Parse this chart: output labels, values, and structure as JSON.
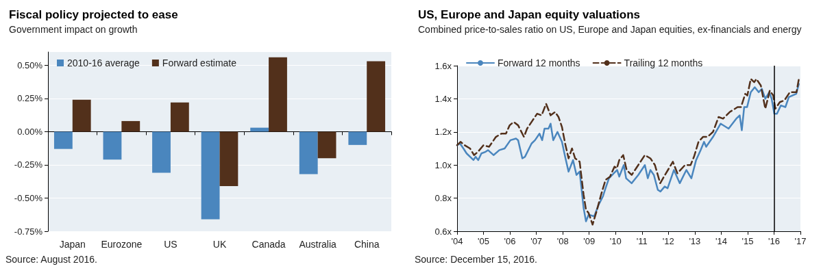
{
  "chart_data": [
    {
      "type": "bar",
      "title": "Fiscal policy projected to ease",
      "subtitle": "Government impact on growth",
      "categories": [
        "Japan",
        "Eurozone",
        "US",
        "UK",
        "Canada",
        "Australia",
        "China"
      ],
      "series": [
        {
          "name": "2010-16 average",
          "color": "#4a86be",
          "values": [
            -0.13,
            -0.21,
            -0.31,
            -0.66,
            0.03,
            -0.32,
            -0.1
          ]
        },
        {
          "name": "Forward estimate",
          "color": "#52301b",
          "values": [
            0.24,
            0.08,
            0.22,
            -0.41,
            0.56,
            -0.2,
            0.53
          ]
        }
      ],
      "ylim": [
        -0.75,
        0.6
      ],
      "yticks": [
        {
          "value": -0.75,
          "label": "-0.75%"
        },
        {
          "value": -0.5,
          "label": "-0.50%"
        },
        {
          "value": -0.25,
          "label": "-0.25%"
        },
        {
          "value": 0,
          "label": "0.00%"
        },
        {
          "value": 0.25,
          "label": "0.25%"
        },
        {
          "value": 0.5,
          "label": "0.50%"
        }
      ],
      "grid": "y",
      "legend": "top left",
      "annotations": [
        "Source: August 2016."
      ]
    },
    {
      "type": "line",
      "title": "US, Europe and Japan equity valuations",
      "subtitle": "Combined price-to-sales ratio on US, Europe and Japan equities, ex-financials and energy",
      "series": [
        {
          "name": "Forward 12 months",
          "color": "#4a86be",
          "x": [
            2004.0,
            2004.11,
            2004.24,
            2004.36,
            2004.62,
            2004.7,
            2004.8,
            2004.92,
            2005.08,
            2005.17,
            2005.38,
            2005.6,
            2005.8,
            2006.02,
            2006.23,
            2006.31,
            2006.47,
            2006.57,
            2006.82,
            2006.95,
            2007.12,
            2007.22,
            2007.31,
            2007.46,
            2007.54,
            2007.64,
            2007.8,
            2007.97,
            2008.09,
            2008.22,
            2008.39,
            2008.52,
            2008.64,
            2008.79,
            2008.88,
            2008.98,
            2009.19,
            2009.36,
            2009.52,
            2009.62,
            2009.75,
            2009.93,
            2010.06,
            2010.14,
            2010.31,
            2010.4,
            2010.61,
            2010.86,
            2011.11,
            2011.22,
            2011.32,
            2011.45,
            2011.6,
            2011.7,
            2011.86,
            2011.97,
            2012.21,
            2012.43,
            2012.68,
            2012.87,
            2013.05,
            2013.22,
            2013.35,
            2013.43,
            2013.69,
            2013.98,
            2014.28,
            2014.57,
            2014.7,
            2014.78,
            2014.87,
            2014.98,
            2015.12,
            2015.27,
            2015.42,
            2015.54,
            2015.67,
            2015.82,
            2015.91,
            2016.01,
            2016.11,
            2016.26,
            2016.43,
            2016.56,
            2016.84,
            2016.94
          ],
          "values": [
            1.12,
            1.13,
            1.1,
            1.07,
            1.03,
            1.05,
            1.03,
            1.07,
            1.08,
            1.09,
            1.06,
            1.09,
            1.1,
            1.15,
            1.16,
            1.15,
            1.04,
            1.05,
            1.13,
            1.15,
            1.19,
            1.15,
            1.22,
            1.22,
            1.25,
            1.15,
            1.2,
            1.14,
            1.05,
            0.96,
            1.03,
            0.94,
            0.96,
            0.74,
            0.66,
            0.7,
            0.69,
            0.76,
            0.81,
            0.86,
            0.92,
            0.95,
            0.97,
            0.93,
            1.0,
            0.92,
            0.89,
            0.94,
            1.0,
            0.92,
            0.97,
            0.94,
            0.85,
            0.84,
            0.87,
            0.86,
            0.97,
            0.89,
            0.97,
            0.92,
            1.03,
            1.09,
            1.14,
            1.11,
            1.17,
            1.25,
            1.22,
            1.28,
            1.3,
            1.21,
            1.35,
            1.35,
            1.44,
            1.47,
            1.44,
            1.46,
            1.4,
            1.44,
            1.4,
            1.31,
            1.31,
            1.36,
            1.35,
            1.41,
            1.43,
            1.49
          ]
        },
        {
          "name": "Trailing 12 months",
          "color": "#52301b",
          "line_style": "dashed",
          "x": [
            2004.0,
            2004.13,
            2004.28,
            2004.49,
            2004.64,
            2004.79,
            2005.0,
            2005.21,
            2005.47,
            2005.68,
            2005.85,
            2005.99,
            2006.14,
            2006.31,
            2006.53,
            2006.65,
            2006.86,
            2007.03,
            2007.2,
            2007.37,
            2007.54,
            2007.71,
            2007.84,
            2007.97,
            2008.09,
            2008.22,
            2008.35,
            2008.47,
            2008.64,
            2008.79,
            2008.88,
            2008.98,
            2009.13,
            2009.28,
            2009.45,
            2009.62,
            2009.79,
            2009.96,
            2010.05,
            2010.14,
            2010.29,
            2010.42,
            2010.61,
            2010.86,
            2011.11,
            2011.32,
            2011.49,
            2011.69,
            2011.87,
            2012.17,
            2012.34,
            2012.63,
            2012.84,
            2012.97,
            2013.14,
            2013.31,
            2013.48,
            2013.69,
            2013.9,
            2014.07,
            2014.32,
            2014.62,
            2014.75,
            2014.91,
            2014.99,
            2015.12,
            2015.25,
            2015.33,
            2015.5,
            2015.67,
            2015.84,
            2015.97,
            2016.05,
            2016.22,
            2016.39,
            2016.6,
            2016.85,
            2016.94
          ],
          "values": [
            1.12,
            1.14,
            1.12,
            1.1,
            1.06,
            1.08,
            1.12,
            1.11,
            1.17,
            1.19,
            1.19,
            1.24,
            1.26,
            1.24,
            1.17,
            1.22,
            1.27,
            1.31,
            1.3,
            1.37,
            1.3,
            1.32,
            1.29,
            1.23,
            1.13,
            1.04,
            1.1,
            1.04,
            1.02,
            0.82,
            0.73,
            0.71,
            0.64,
            0.72,
            0.82,
            0.91,
            0.93,
            0.99,
            0.98,
            1.03,
            1.06,
            0.97,
            0.94,
            1.0,
            1.06,
            1.04,
            1.0,
            0.89,
            0.94,
            1.02,
            0.95,
            1.0,
            1.0,
            1.05,
            1.14,
            1.17,
            1.17,
            1.2,
            1.29,
            1.28,
            1.32,
            1.35,
            1.35,
            1.43,
            1.42,
            1.52,
            1.5,
            1.52,
            1.48,
            1.34,
            1.45,
            1.42,
            1.34,
            1.38,
            1.39,
            1.44,
            1.44,
            1.52
          ]
        }
      ],
      "xlim": [
        2004,
        2017
      ],
      "xticks": [
        {
          "value": 2004,
          "label": "'04"
        },
        {
          "value": 2005,
          "label": "'05"
        },
        {
          "value": 2006,
          "label": "'06"
        },
        {
          "value": 2007,
          "label": "'07"
        },
        {
          "value": 2008,
          "label": "'08"
        },
        {
          "value": 2009,
          "label": "'09"
        },
        {
          "value": 2010,
          "label": "'10"
        },
        {
          "value": 2011,
          "label": "'11"
        },
        {
          "value": 2012,
          "label": "'12"
        },
        {
          "value": 2013,
          "label": "'13"
        },
        {
          "value": 2014,
          "label": "'14"
        },
        {
          "value": 2015,
          "label": "'15"
        },
        {
          "value": 2016,
          "label": "'16"
        },
        {
          "value": 2017,
          "label": "'17"
        }
      ],
      "ylim": [
        0.6,
        1.6
      ],
      "yticks": [
        {
          "value": 0.6,
          "label": "0.6x"
        },
        {
          "value": 0.8,
          "label": "0.8x"
        },
        {
          "value": 1.0,
          "label": "1.0x"
        },
        {
          "value": 1.2,
          "label": "1.2x"
        },
        {
          "value": 1.4,
          "label": "1.4x"
        },
        {
          "value": 1.6,
          "label": "1.6x"
        }
      ],
      "ref_lines": [
        {
          "axis": "x",
          "value": 2016,
          "color": "#000000"
        }
      ],
      "grid": "y",
      "legend": "top left",
      "annotations": [
        "Source: December 15, 2016."
      ]
    }
  ]
}
